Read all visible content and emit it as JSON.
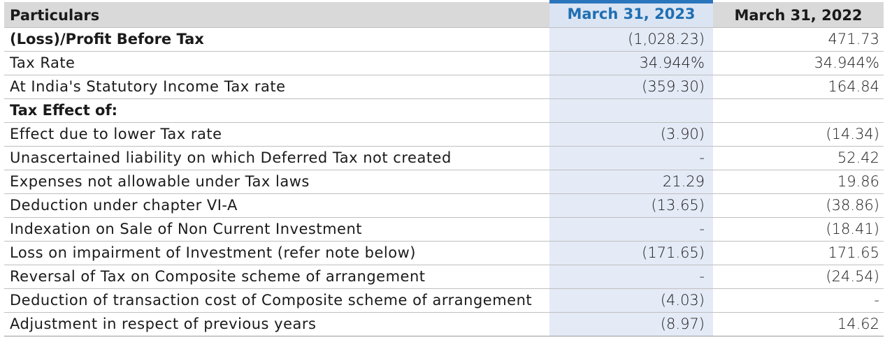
{
  "table": {
    "headers": {
      "particulars": "Particulars",
      "current": "March 31, 2023",
      "previous": "March 31, 2022"
    },
    "rows": [
      {
        "label": "(Loss)/Profit Before Tax",
        "current": "(1,028.23)",
        "previous": "471.73",
        "bold": true
      },
      {
        "label": "Tax Rate",
        "current": "34.944%",
        "previous": "34.944%"
      },
      {
        "label": "At India's Statutory Income Tax rate",
        "current": "(359.30)",
        "previous": "164.84"
      },
      {
        "label": "Tax Effect of:",
        "current": "",
        "previous": "",
        "bold": true
      },
      {
        "label": "Effect due to lower Tax rate",
        "current": "(3.90)",
        "previous": "(14.34)"
      },
      {
        "label": "Unascertained liability on which Deferred Tax not created",
        "current": "-",
        "previous": "52.42"
      },
      {
        "label": "Expenses not allowable under Tax laws",
        "current": "21.29",
        "previous": "19.86"
      },
      {
        "label": "Deduction under chapter VI-A",
        "current": "(13.65)",
        "previous": "(38.86)"
      },
      {
        "label": "Indexation on Sale of Non Current Investment",
        "current": "-",
        "previous": "(18.41)"
      },
      {
        "label": "Loss on impairment of Investment (refer note below)",
        "current": "(171.65)",
        "previous": "171.65"
      },
      {
        "label": "Reversal of Tax on Composite scheme of arrangement",
        "current": "-",
        "previous": "(24.54)"
      },
      {
        "label": "Deduction of transaction cost of Composite scheme of arrangement",
        "current": "(4.03)",
        "previous": "-"
      },
      {
        "label": "Adjustment in respect of previous years",
        "current": "(8.97)",
        "previous": "14.62"
      }
    ]
  }
}
